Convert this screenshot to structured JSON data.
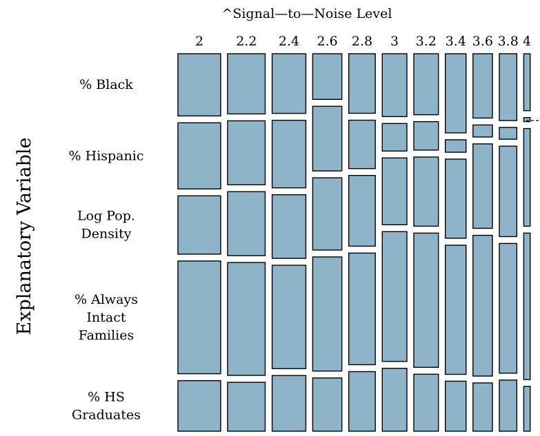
{
  "chart_data": {
    "type": "mosaic",
    "title": "^Signal—to—Noise Level",
    "ylabel": "Explanatory Variable",
    "fill_color": "#8fb3c8",
    "stroke_color": "#000000",
    "x_categories": [
      "2",
      "2.2",
      "2.4",
      "2.6",
      "2.8",
      "3",
      "3.2",
      "3.4",
      "3.6",
      "3.8",
      "4"
    ],
    "column_widths": [
      0.66,
      0.58,
      0.52,
      0.45,
      0.41,
      0.38,
      0.38,
      0.32,
      0.3,
      0.27,
      0.1
    ],
    "rows": [
      {
        "label": [
          "% Black"
        ],
        "values": [
          0.16,
          0.16,
          0.15,
          0.12,
          0.16,
          0.16,
          0.15,
          0.19,
          0.16,
          0.17,
          0.14
        ]
      },
      {
        "label": [
          "% Hispanic"
        ],
        "values": [
          0.17,
          0.17,
          0.17,
          0.17,
          0.13,
          0.07,
          0.07,
          0.03,
          0.03,
          0.03,
          0.01
        ]
      },
      {
        "label": [
          "Log Pop.",
          "Density"
        ],
        "values": [
          0.15,
          0.17,
          0.16,
          0.19,
          0.19,
          0.17,
          0.17,
          0.19,
          0.21,
          0.23,
          0.24
        ]
      },
      {
        "label": [
          "% Always",
          "Intact",
          "Families"
        ],
        "values": [
          0.29,
          0.3,
          0.26,
          0.3,
          0.3,
          0.33,
          0.33,
          0.31,
          0.35,
          0.33,
          0.36
        ]
      },
      {
        "label": [
          "% HS",
          "Graduates"
        ],
        "values": [
          0.13,
          0.13,
          0.14,
          0.14,
          0.16,
          0.16,
          0.14,
          0.12,
          0.12,
          0.13,
          0.11
        ]
      }
    ]
  }
}
